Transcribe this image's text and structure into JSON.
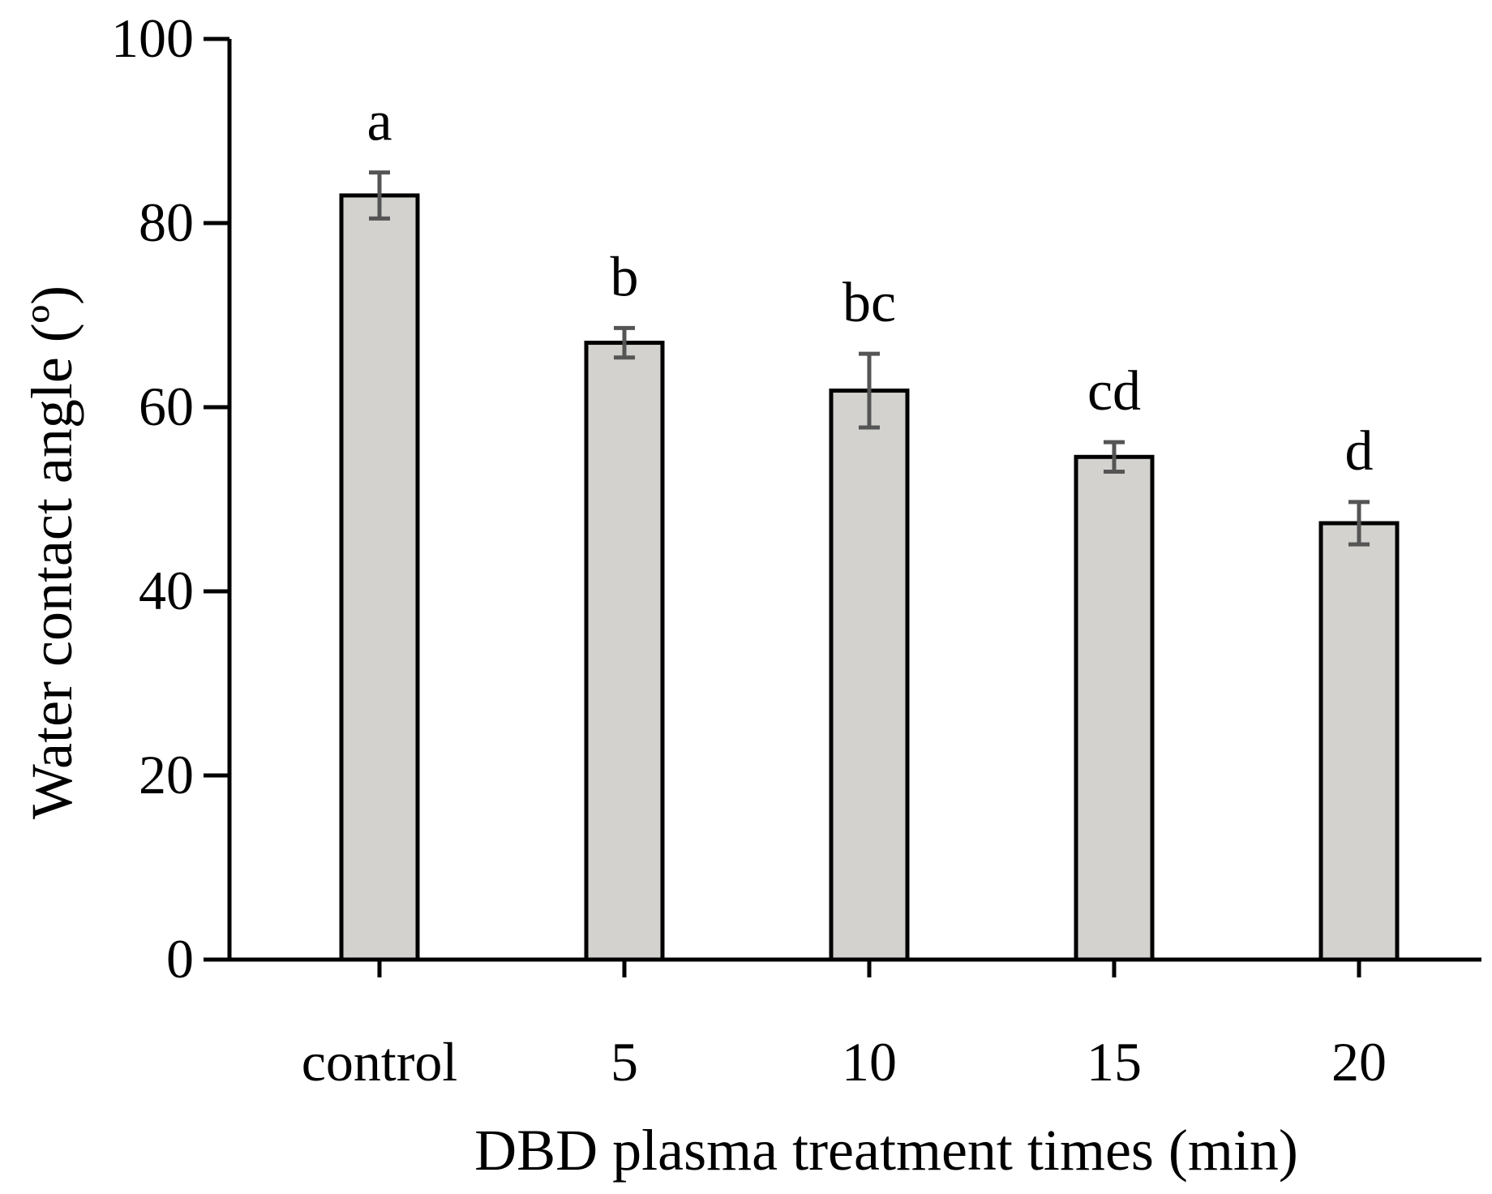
{
  "chart_data": {
    "type": "bar",
    "title": "",
    "xlabel": "DBD plasma treatment times (min)",
    "ylabel": "Water contact angle (º)",
    "categories": [
      "control",
      "5",
      "10",
      "15",
      "20"
    ],
    "values": [
      83,
      67,
      61.8,
      54.6,
      47.4
    ],
    "errors": [
      2.5,
      1.6,
      4.0,
      1.6,
      2.3
    ],
    "significance_letters": [
      "a",
      "b",
      "bc",
      "cd",
      "d"
    ],
    "ylim": [
      0,
      100
    ],
    "yticks": [
      0,
      20,
      40,
      60,
      80,
      100
    ],
    "grid": false,
    "legend": "none",
    "colors": {
      "bar_fill": "#d3d2cf",
      "bar_stroke": "#000000",
      "error_bar": "#555555",
      "axis": "#000000"
    }
  }
}
